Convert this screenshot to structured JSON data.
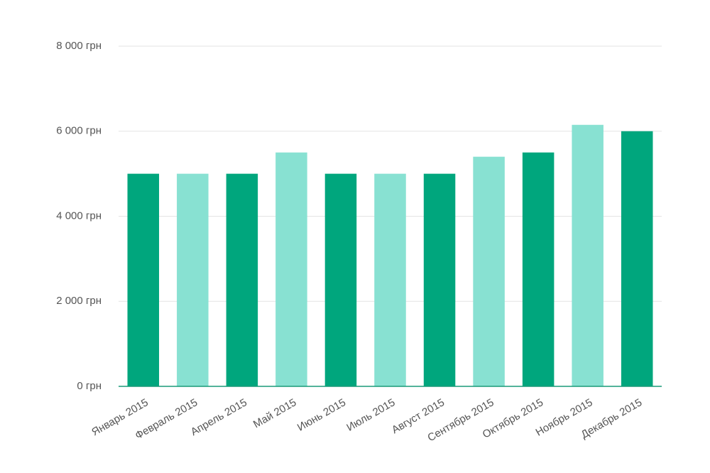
{
  "chart_data": {
    "type": "bar",
    "categories": [
      "Январь 2015",
      "Февраль 2015",
      "Апрель 2015",
      "Май 2015",
      "Июнь 2015",
      "Июль 2015",
      "Август 2015",
      "Сентябрь 2015",
      "Октябрь 2015",
      "Ноябрь 2015",
      "Декабрь 2015"
    ],
    "values": [
      5000,
      5000,
      5000,
      5500,
      5000,
      5000,
      5000,
      5400,
      5500,
      6150,
      6000
    ],
    "colors": [
      "#00a67d",
      "#88e1d2",
      "#00a67d",
      "#88e1d2",
      "#00a67d",
      "#88e1d2",
      "#00a67d",
      "#88e1d2",
      "#00a67d",
      "#88e1d2",
      "#00a67d"
    ],
    "ylim": [
      0,
      8000
    ],
    "yticks": [
      {
        "value": 0,
        "label": "0 грн"
      },
      {
        "value": 2000,
        "label": "2 000 грн"
      },
      {
        "value": 4000,
        "label": "4 000 грн"
      },
      {
        "value": 6000,
        "label": "6 000 грн"
      },
      {
        "value": 8000,
        "label": "8 000 грн"
      }
    ],
    "grid": true
  }
}
